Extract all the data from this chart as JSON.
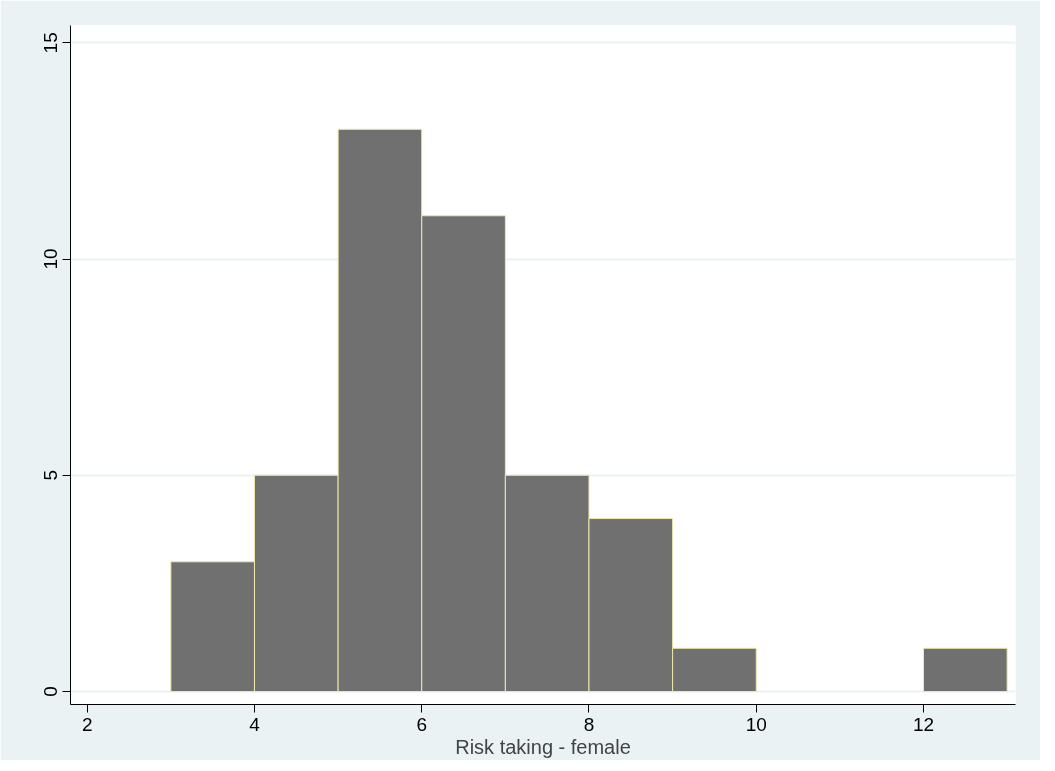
{
  "chart_data": {
    "type": "histogram",
    "xlabel": "Risk taking - female",
    "bins": [
      3,
      4,
      5,
      6,
      7,
      8,
      9,
      10,
      11,
      12,
      13
    ],
    "values": [
      3,
      5,
      13,
      11,
      5,
      4,
      1,
      0,
      0,
      1
    ],
    "color": "#707070",
    "xlim": [
      1.8,
      13.1
    ],
    "ylim": [
      -0.3,
      15.4
    ],
    "xticks": [
      2,
      4,
      6,
      8,
      10,
      12
    ],
    "yticks": [
      0,
      5,
      10,
      15
    ],
    "grid": "y"
  }
}
